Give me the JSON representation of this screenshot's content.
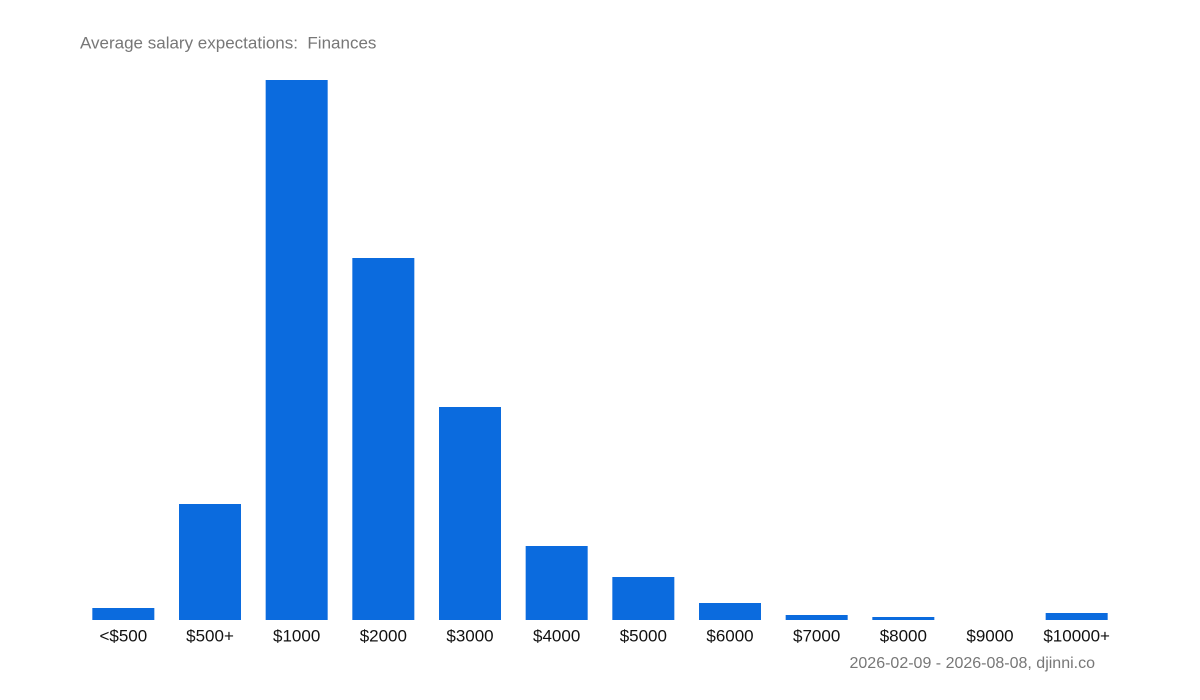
{
  "chart_data": {
    "type": "bar",
    "title": "Average salary expectations:  Finances",
    "categories": [
      "<$500",
      "$500+",
      "$1000",
      "$2000",
      "$3000",
      "$4000",
      "$5000",
      "$6000",
      "$7000",
      "$8000",
      "$9000",
      "$10000+"
    ],
    "values": [
      12,
      116,
      540,
      362,
      213,
      74,
      43,
      17,
      5,
      3,
      0,
      7
    ],
    "color": "#0b6bde",
    "ylim": [
      0,
      540
    ],
    "source": "2026-02-09 - 2026-08-08, djinni.co"
  }
}
